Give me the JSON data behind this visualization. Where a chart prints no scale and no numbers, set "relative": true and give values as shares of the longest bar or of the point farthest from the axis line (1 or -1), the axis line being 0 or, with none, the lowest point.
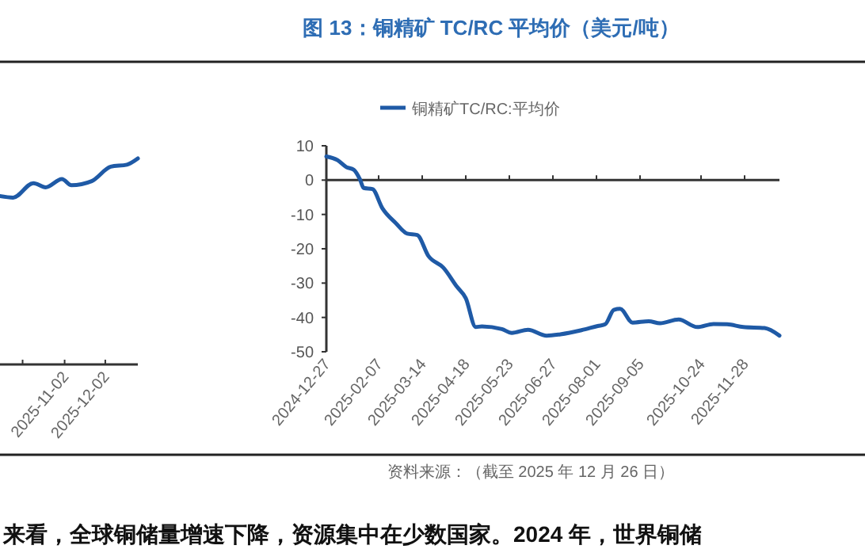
{
  "chart_data": [
    {
      "type": "line",
      "relative": true,
      "tick_labels": "x",
      "xlim": [
        "2025-09-13",
        "2025-12-26"
      ],
      "xticks": [
        {
          "value": "2025-10-02",
          "label": null
        },
        "2025-11-02",
        "2025-12-02"
      ],
      "series": [
        {
          "color": "#1f5aa6",
          "x": [
            "2025-09-13",
            "2025-09-25",
            "2025-10-10",
            "2025-10-19",
            "2025-10-31",
            "2025-11-07",
            "2025-11-22",
            "2025-12-06",
            "2025-12-18",
            "2025-12-26"
          ],
          "values": [
            0.82,
            0.81,
            0.88,
            0.86,
            0.9,
            0.87,
            0.89,
            0.96,
            0.97,
            1.0
          ]
        }
      ]
    },
    {
      "type": "line",
      "title": "图 13：铜精矿 TC/RC 平均价（美元/吨）",
      "legend": "top",
      "xlim": [
        "2024-12-27",
        "2025-12-26"
      ],
      "ylim": [
        -50,
        10
      ],
      "yticks": [
        -50,
        -40,
        -30,
        -20,
        -10,
        0,
        10
      ],
      "xticks": [
        "2024-12-27",
        "2025-02-07",
        "2025-03-14",
        "2025-04-18",
        "2025-05-23",
        "2025-06-27",
        "2025-08-01",
        "2025-09-05",
        "2025-10-24",
        "2025-11-28"
      ],
      "series": [
        {
          "name": "铜精矿TC/RC:平均价",
          "color": "#1f5aa6",
          "x": [
            "2024-12-27",
            "2025-01-05",
            "2025-01-12",
            "2025-01-18",
            "2025-01-23",
            "2025-01-26",
            "2025-02-02",
            "2025-02-10",
            "2025-02-21",
            "2025-03-02",
            "2025-03-10",
            "2025-03-19",
            "2025-03-31",
            "2025-04-11",
            "2025-04-18",
            "2025-04-26",
            "2025-05-01",
            "2025-05-17",
            "2025-05-25",
            "2025-06-07",
            "2025-06-22",
            "2025-07-03",
            "2025-07-20",
            "2025-08-02",
            "2025-08-08",
            "2025-08-15",
            "2025-08-20",
            "2025-08-30",
            "2025-09-12",
            "2025-09-21",
            "2025-10-06",
            "2025-10-21",
            "2025-11-03",
            "2025-11-14",
            "2025-11-27",
            "2025-12-14",
            "2025-12-26"
          ],
          "values": [
            6.9,
            5.8,
            3.8,
            3.0,
            0.2,
            -2.3,
            -2.6,
            -8.2,
            -12.6,
            -15.6,
            -16.0,
            -22.1,
            -25.5,
            -31.1,
            -34.4,
            -42.8,
            -42.6,
            -43.4,
            -44.5,
            -43.6,
            -45.3,
            -44.9,
            -43.7,
            -42.5,
            -42.0,
            -37.8,
            -37.5,
            -41.5,
            -41.1,
            -41.7,
            -40.6,
            -42.8,
            -41.9,
            -42.0,
            -42.8,
            -43.1,
            -45.3
          ]
        }
      ],
      "annotations": [
        "资料来源：（截至 2025 年 12 月 26 日）",
        "来看，全球铜储量增速下降，资源集中在少数国家。2024 年，世界铜储"
      ]
    }
  ]
}
